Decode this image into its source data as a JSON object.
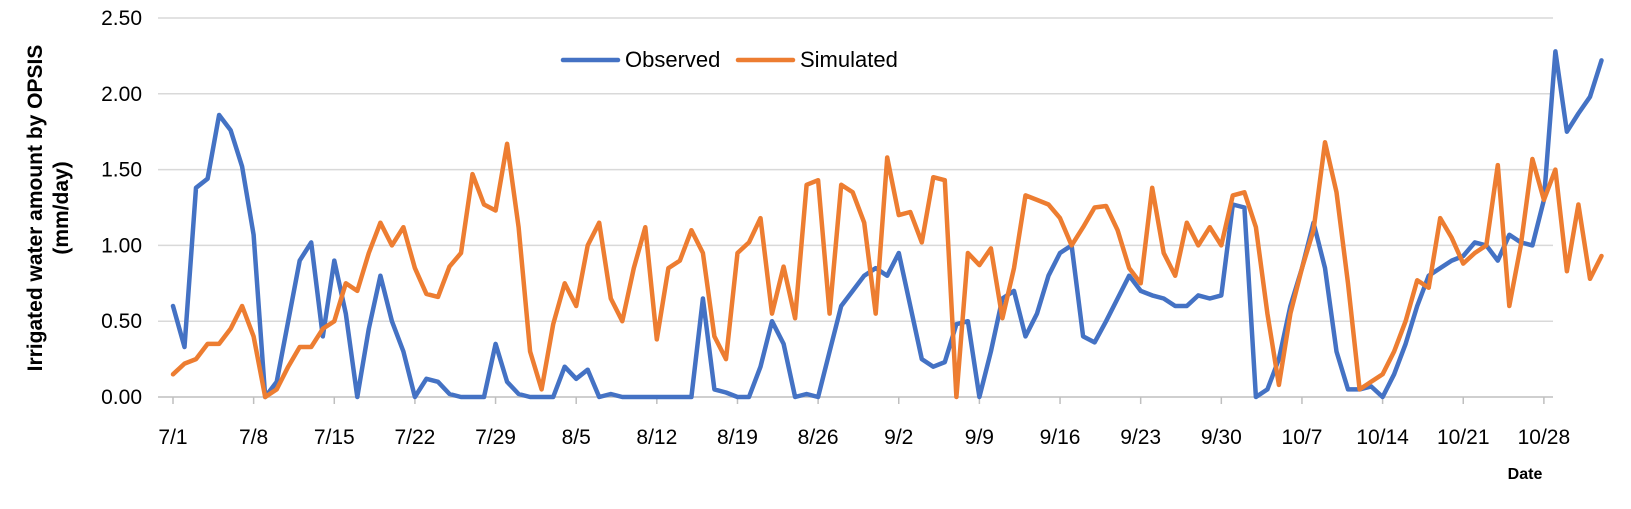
{
  "chart_data": {
    "type": "line",
    "title": "",
    "xlabel": "Date",
    "ylabel_line1": "Irrigated water amount by OPSIS",
    "ylabel_line2": "(mm/day)",
    "ylim": [
      0,
      2.5
    ],
    "yticks": [
      "0.00",
      "0.50",
      "1.00",
      "1.50",
      "2.00",
      "2.50"
    ],
    "xtick_labels": [
      "7/1",
      "7/8",
      "7/15",
      "7/22",
      "7/29",
      "8/5",
      "8/12",
      "8/19",
      "8/26",
      "9/2",
      "9/9",
      "9/16",
      "9/23",
      "9/30",
      "10/7",
      "10/14",
      "10/21",
      "10/28"
    ],
    "x_start": "7/1",
    "x_end": "10/31",
    "grid": "horizontal",
    "legend": "top-center",
    "series": [
      {
        "name": "Observed",
        "color": "#4472c4",
        "values": [
          0.6,
          0.33,
          1.38,
          1.44,
          1.86,
          1.76,
          1.52,
          1.07,
          0.0,
          0.1,
          0.5,
          0.9,
          1.02,
          0.4,
          0.9,
          0.55,
          0.0,
          0.45,
          0.8,
          0.5,
          0.3,
          0.0,
          0.12,
          0.1,
          0.02,
          0.0,
          0.0,
          0.0,
          0.35,
          0.1,
          0.02,
          0.0,
          0.0,
          0.0,
          0.2,
          0.12,
          0.18,
          0.0,
          0.02,
          0.0,
          0.0,
          0.0,
          0.0,
          0.0,
          0.0,
          0.0,
          0.65,
          0.05,
          0.03,
          0.0,
          0.0,
          0.2,
          0.5,
          0.35,
          0.0,
          0.02,
          0.0,
          0.3,
          0.6,
          0.7,
          0.8,
          0.85,
          0.8,
          0.95,
          0.6,
          0.25,
          0.2,
          0.23,
          0.48,
          0.5,
          0.0,
          0.3,
          0.65,
          0.7,
          0.4,
          0.55,
          0.8,
          0.95,
          1.0,
          0.4,
          0.36,
          0.5,
          0.65,
          0.8,
          0.7,
          0.67,
          0.65,
          0.6,
          0.6,
          0.67,
          0.65,
          0.67,
          1.27,
          1.25,
          0.0,
          0.05,
          0.25,
          0.6,
          0.85,
          1.15,
          0.85,
          0.3,
          0.05,
          0.05,
          0.07,
          0.0,
          0.15,
          0.35,
          0.6,
          0.8,
          0.85,
          0.9,
          0.93,
          1.02,
          1.0,
          0.9,
          1.07,
          1.02,
          1.0,
          1.3,
          2.28,
          1.75,
          1.87,
          1.98,
          2.22
        ]
      },
      {
        "name": "Simulated",
        "color": "#ed7d31",
        "values": [
          0.15,
          0.22,
          0.25,
          0.35,
          0.35,
          0.45,
          0.6,
          0.4,
          0.0,
          0.05,
          0.2,
          0.33,
          0.33,
          0.45,
          0.5,
          0.75,
          0.7,
          0.95,
          1.15,
          1.0,
          1.12,
          0.85,
          0.68,
          0.66,
          0.86,
          0.95,
          1.47,
          1.27,
          1.23,
          1.67,
          1.12,
          0.3,
          0.05,
          0.48,
          0.75,
          0.6,
          1.0,
          1.15,
          0.65,
          0.5,
          0.85,
          1.12,
          0.38,
          0.85,
          0.9,
          1.1,
          0.95,
          0.4,
          0.25,
          0.95,
          1.02,
          1.18,
          0.55,
          0.86,
          0.52,
          1.4,
          1.43,
          0.55,
          1.4,
          1.35,
          1.15,
          0.55,
          1.58,
          1.2,
          1.22,
          1.02,
          1.45,
          1.43,
          0.0,
          0.95,
          0.87,
          0.98,
          0.52,
          0.85,
          1.33,
          1.3,
          1.27,
          1.18,
          1.0,
          1.12,
          1.25,
          1.26,
          1.1,
          0.85,
          0.75,
          1.38,
          0.95,
          0.8,
          1.15,
          1.0,
          1.12,
          1.0,
          1.33,
          1.35,
          1.12,
          0.55,
          0.08,
          0.55,
          0.85,
          1.1,
          1.68,
          1.35,
          0.75,
          0.05,
          0.1,
          0.15,
          0.3,
          0.5,
          0.77,
          0.72,
          1.18,
          1.05,
          0.88,
          0.95,
          1.0,
          1.53,
          0.6,
          1.0,
          1.57,
          1.3,
          1.5,
          0.83,
          1.27,
          0.78,
          0.93
        ]
      }
    ]
  }
}
